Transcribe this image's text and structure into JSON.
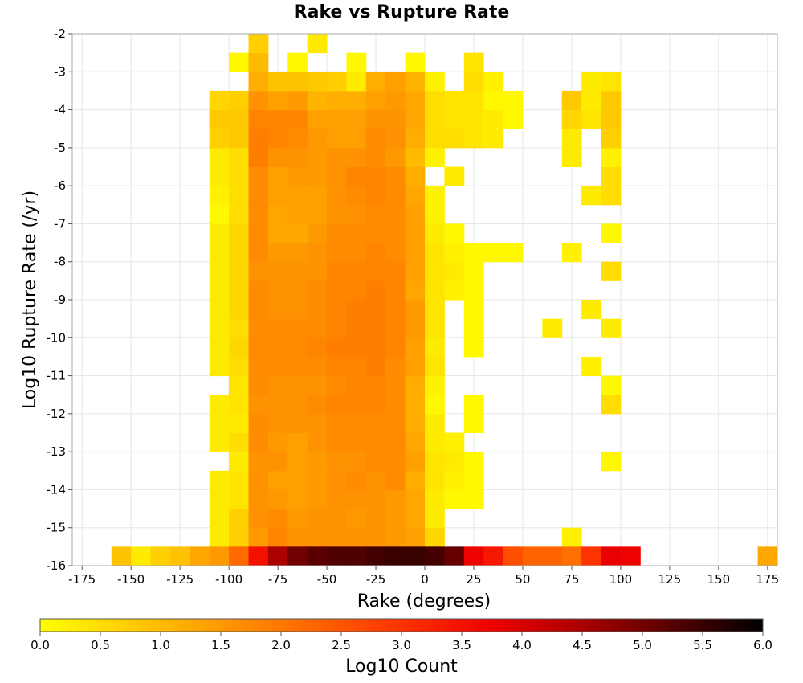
{
  "chart_data": {
    "type": "heatmap",
    "title": "Rake vs Rupture Rate",
    "xlabel": "Rake (degrees)",
    "ylabel": "Log10 Rupture Rate (/yr)",
    "xlim": [
      -180,
      180
    ],
    "ylim": [
      -16,
      -2
    ],
    "xticks": [
      "-175",
      "-150",
      "-125",
      "-100",
      "-75",
      "-50",
      "-25",
      "0",
      "25",
      "50",
      "75",
      "100",
      "125",
      "150",
      "175"
    ],
    "yticks": [
      "-2",
      "-3",
      "-4",
      "-5",
      "-6",
      "-7",
      "-8",
      "-9",
      "-10",
      "-11",
      "-12",
      "-13",
      "-14",
      "-15",
      "-16"
    ],
    "grid": true,
    "colorbar": {
      "label": "Log10 Count",
      "min": 0.0,
      "max": 6.0,
      "ticks": [
        "0.0",
        "0.5",
        "1.0",
        "1.5",
        "2.0",
        "2.5",
        "3.0",
        "3.5",
        "4.0",
        "4.5",
        "5.0",
        "5.5",
        "6.0"
      ],
      "colors": [
        "#ffff00",
        "#ffcc00",
        "#ff9900",
        "#ff6600",
        "#ff3300",
        "#ee0000",
        "#aa0000",
        "#550000",
        "#000000"
      ]
    },
    "bin_width_x": 10,
    "bin_height_y": 0.5,
    "row_x_start": -110,
    "rows": [
      {
        "y": -15.5,
        "values": [
          0.3,
          0.7,
          1.5,
          1.8,
          1.6,
          1.6,
          1.6,
          1.6,
          1.6,
          1.5,
          1.4,
          0.6
        ]
      },
      {
        "y": -15.0,
        "values": [
          0.3,
          0.7,
          1.6,
          1.7,
          1.5,
          1.6,
          1.6,
          1.5,
          1.6,
          1.5,
          1.3,
          0.3
        ]
      },
      {
        "y": -14.5,
        "values": [
          0.3,
          0.4,
          1.6,
          1.5,
          1.4,
          1.5,
          1.6,
          1.6,
          1.6,
          1.5,
          1.3,
          0.3,
          0.1,
          0.1
        ]
      },
      {
        "y": -14.0,
        "values": [
          0.3,
          0.4,
          1.6,
          1.4,
          1.4,
          1.5,
          1.6,
          1.7,
          1.6,
          1.7,
          1.2,
          0.4,
          0.2,
          0.1
        ]
      },
      {
        "y": -13.5,
        "values": [
          null,
          0.3,
          1.6,
          1.6,
          1.4,
          1.5,
          1.6,
          1.6,
          1.7,
          1.7,
          1.4,
          0.4,
          0.3,
          0.1
        ]
      },
      {
        "y": -13.0,
        "values": [
          0.3,
          0.5,
          1.7,
          1.5,
          1.4,
          1.6,
          1.7,
          1.7,
          1.7,
          1.7,
          1.3,
          0.3,
          0.2
        ]
      },
      {
        "y": -12.5,
        "values": [
          0.3,
          0.3,
          1.7,
          1.6,
          1.6,
          1.6,
          1.7,
          1.7,
          1.7,
          1.7,
          1.2,
          0.3,
          null,
          0.1
        ]
      },
      {
        "y": -12.0,
        "values": [
          0.3,
          0.4,
          1.6,
          1.6,
          1.6,
          1.7,
          1.8,
          1.8,
          1.8,
          1.7,
          1.2,
          0.1,
          null,
          0.1
        ]
      },
      {
        "y": -11.5,
        "values": [
          null,
          0.4,
          1.7,
          1.6,
          1.6,
          1.6,
          1.7,
          1.8,
          1.8,
          1.7,
          1.2,
          0.2
        ]
      },
      {
        "y": -11.0,
        "values": [
          0.3,
          0.5,
          1.7,
          1.7,
          1.7,
          1.7,
          1.8,
          1.8,
          1.9,
          1.7,
          1.4,
          0.4
        ]
      },
      {
        "y": -10.5,
        "values": [
          0.3,
          0.6,
          1.7,
          1.7,
          1.7,
          1.8,
          1.9,
          1.9,
          1.9,
          1.8,
          1.4,
          0.3,
          null,
          0.1
        ]
      },
      {
        "y": -10.0,
        "values": [
          0.3,
          0.5,
          1.7,
          1.7,
          1.7,
          1.7,
          1.8,
          1.9,
          1.9,
          1.8,
          1.5,
          0.4,
          null,
          0.1
        ]
      },
      {
        "y": -9.5,
        "values": [
          0.3,
          0.6,
          1.7,
          1.6,
          1.6,
          1.7,
          1.8,
          1.9,
          1.9,
          1.8,
          1.5,
          0.4,
          null,
          0.1
        ]
      },
      {
        "y": -9.0,
        "values": [
          0.3,
          0.6,
          1.7,
          1.6,
          1.6,
          1.7,
          1.8,
          1.8,
          1.9,
          1.8,
          1.3,
          0.4,
          0.2,
          0.1
        ]
      },
      {
        "y": -8.5,
        "values": [
          0.3,
          0.6,
          1.6,
          1.6,
          1.6,
          1.6,
          1.8,
          1.8,
          1.8,
          1.8,
          1.4,
          0.4,
          0.3,
          0.1
        ]
      },
      {
        "y": -8.0,
        "values": [
          0.3,
          0.6,
          1.7,
          1.5,
          1.5,
          1.6,
          1.7,
          1.7,
          1.8,
          1.7,
          1.4,
          0.4,
          0.2,
          0.1,
          0.1,
          0.1
        ]
      },
      {
        "y": -7.5,
        "values": [
          0.3,
          0.6,
          1.7,
          1.3,
          1.3,
          1.5,
          1.7,
          1.7,
          1.7,
          1.7,
          1.4,
          0.3,
          0.1
        ]
      },
      {
        "y": -7.0,
        "values": [
          0.1,
          0.5,
          1.7,
          1.3,
          1.4,
          1.4,
          1.6,
          1.6,
          1.7,
          1.7,
          1.4,
          0.2
        ]
      },
      {
        "y": -6.5,
        "values": [
          0.2,
          0.5,
          1.7,
          1.4,
          1.4,
          1.4,
          1.6,
          1.7,
          1.8,
          1.7,
          1.3,
          0.2
        ]
      },
      {
        "y": -6.0,
        "values": [
          0.3,
          0.5,
          1.7,
          1.4,
          1.5,
          1.5,
          1.6,
          1.8,
          1.8,
          1.7,
          1.2,
          null,
          0.3
        ]
      },
      {
        "y": -5.5,
        "values": [
          0.3,
          0.5,
          1.9,
          1.6,
          1.6,
          1.5,
          1.6,
          1.6,
          1.7,
          1.5,
          1.0,
          0.2
        ]
      },
      {
        "y": -5.0,
        "values": [
          0.7,
          0.8,
          1.9,
          1.8,
          1.7,
          1.5,
          1.4,
          1.4,
          1.7,
          1.6,
          1.2,
          0.5,
          0.5,
          0.4,
          0.3
        ]
      },
      {
        "y": -4.5,
        "values": [
          0.8,
          0.8,
          1.8,
          1.8,
          1.8,
          1.4,
          1.4,
          1.4,
          1.6,
          1.6,
          1.3,
          0.5,
          0.4,
          0.4,
          0.3,
          0.1
        ]
      },
      {
        "y": -4.0,
        "values": [
          0.6,
          0.7,
          1.6,
          1.4,
          1.5,
          1.1,
          1.2,
          1.2,
          1.4,
          1.5,
          1.3,
          0.5,
          0.4,
          0.4,
          0.1,
          0.1
        ]
      },
      {
        "y": -3.5,
        "values": [
          null,
          null,
          1.2,
          0.9,
          0.9,
          0.8,
          0.7,
          0.3,
          1.2,
          1.4,
          1.1,
          0.2,
          null,
          0.5,
          0.2
        ]
      },
      {
        "y": -3.0,
        "values": [
          null,
          0.1,
          1.0,
          null,
          0.1,
          null,
          null,
          0.1,
          null,
          null,
          0.1,
          null,
          null,
          0.4
        ]
      },
      {
        "y": -2.5,
        "values": [
          null,
          null,
          0.7,
          null,
          null,
          0.3
        ]
      }
    ],
    "extra_cells": [
      {
        "x": 70,
        "y": -15.5,
        "value": 0.2
      },
      {
        "x": 90,
        "y": -13.5,
        "value": 0.1
      },
      {
        "x": 90,
        "y": -12.0,
        "value": 0.5
      },
      {
        "x": 90,
        "y": -11.5,
        "value": 0.1
      },
      {
        "x": 80,
        "y": -11.0,
        "value": 0.2
      },
      {
        "x": 60,
        "y": -10.0,
        "value": 0.3
      },
      {
        "x": 90,
        "y": -10.0,
        "value": 0.3
      },
      {
        "x": 80,
        "y": -9.5,
        "value": 0.3
      },
      {
        "x": 90,
        "y": -8.5,
        "value": 0.5
      },
      {
        "x": 70,
        "y": -8.0,
        "value": 0.2
      },
      {
        "x": 90,
        "y": -7.5,
        "value": 0.1
      },
      {
        "x": 80,
        "y": -6.5,
        "value": 0.3
      },
      {
        "x": 90,
        "y": -6.5,
        "value": 0.5
      },
      {
        "x": 90,
        "y": -6.0,
        "value": 0.5
      },
      {
        "x": 90,
        "y": -5.5,
        "value": 0.2
      },
      {
        "x": 70,
        "y": -5.5,
        "value": 0.3
      },
      {
        "x": 90,
        "y": -5.0,
        "value": 0.7
      },
      {
        "x": 70,
        "y": -5.0,
        "value": 0.3
      },
      {
        "x": 70,
        "y": -4.5,
        "value": 0.6
      },
      {
        "x": 80,
        "y": -4.5,
        "value": 0.4
      },
      {
        "x": 90,
        "y": -4.5,
        "value": 0.8
      },
      {
        "x": 70,
        "y": -4.0,
        "value": 0.8
      },
      {
        "x": 80,
        "y": -4.0,
        "value": 0.3
      },
      {
        "x": 90,
        "y": -4.0,
        "value": 0.8
      },
      {
        "x": 80,
        "y": -3.5,
        "value": 0.3
      },
      {
        "x": 90,
        "y": -3.5,
        "value": 0.4
      }
    ],
    "bottom_row": {
      "y": -16.0,
      "x_start": -160,
      "values": [
        0.9,
        0.3,
        0.7,
        0.9,
        1.3,
        1.5,
        2.2,
        3.5,
        4.5,
        5.0,
        5.2,
        5.3,
        5.3,
        5.4,
        5.5,
        5.5,
        5.4,
        5.1,
        3.7,
        3.4,
        2.6,
        2.3,
        2.3,
        2.1,
        3.0,
        3.8,
        3.7
      ]
    },
    "isolated_cells": [
      {
        "x": 170,
        "y": -16.0,
        "value": 1.3
      }
    ]
  }
}
